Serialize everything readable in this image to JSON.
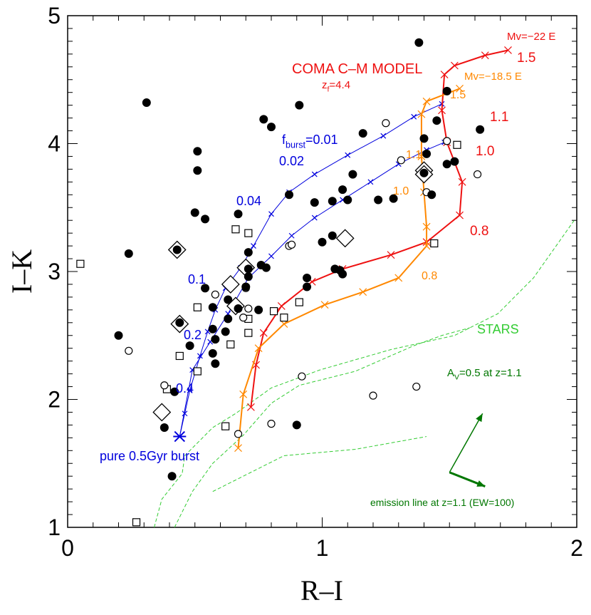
{
  "chart_data": {
    "type": "scatter",
    "xlabel": "R–I",
    "ylabel": "I–K",
    "xlim": [
      0,
      2
    ],
    "ylim": [
      1,
      5
    ],
    "xticks": [
      0,
      1,
      2
    ],
    "yticks": [
      1,
      2,
      3,
      4,
      5
    ],
    "xminorticks": [
      0.1,
      0.2,
      0.3,
      0.4,
      0.5,
      0.6,
      0.7,
      0.8,
      0.9,
      1.1,
      1.2,
      1.3,
      1.4,
      1.5,
      1.6,
      1.7,
      1.8,
      1.9
    ],
    "yminorticks": [
      1.1,
      1.2,
      1.3,
      1.4,
      1.5,
      1.6,
      1.7,
      1.8,
      1.9,
      2.1,
      2.2,
      2.3,
      2.4,
      2.5,
      2.6,
      2.7,
      2.8,
      2.9,
      3.1,
      3.2,
      3.3,
      3.4,
      3.5,
      3.6,
      3.7,
      3.8,
      3.9,
      4.1,
      4.2,
      4.3,
      4.4,
      4.5,
      4.6,
      4.7,
      4.8,
      4.9
    ],
    "series": [
      {
        "marker": "dashed",
        "color": "#33cc33",
        "x": [
          0.34,
          0.37,
          0.45,
          0.46,
          0.57,
          0.66,
          0.8,
          0.99,
          1.27,
          1.52,
          1.69,
          1.83,
          1.99
        ],
        "y": [
          1.0,
          1.22,
          1.42,
          1.56,
          1.78,
          1.89,
          2.09,
          2.23,
          2.39,
          2.5,
          2.67,
          2.95,
          3.4
        ]
      },
      {
        "marker": "dashed",
        "color": "#33cc33",
        "x": [
          0.42,
          0.49,
          0.57,
          0.69,
          0.8,
          0.91,
          1.13,
          1.36,
          1.47,
          1.58
        ],
        "y": [
          1.0,
          1.28,
          1.5,
          1.72,
          1.97,
          2.11,
          2.22,
          2.42,
          2.5,
          2.56
        ]
      },
      {
        "marker": "dashed",
        "color": "#33cc33",
        "x": [
          0.57,
          0.85,
          1.13,
          1.41
        ],
        "y": [
          1.28,
          1.56,
          1.61,
          1.71
        ]
      },
      {
        "marker": "x",
        "line": true,
        "width": 1,
        "color": "#0000dd",
        "x": [
          0.44,
          0.46,
          0.48,
          0.52,
          0.55,
          0.58,
          0.62,
          0.68,
          0.73,
          0.8,
          0.87,
          0.97,
          1.1,
          1.24,
          1.36,
          1.47
        ],
        "y": [
          1.71,
          1.89,
          2.07,
          2.34,
          2.53,
          2.7,
          2.87,
          3.03,
          3.2,
          3.45,
          3.62,
          3.76,
          3.91,
          4.06,
          4.21,
          4.31
        ]
      },
      {
        "marker": "x",
        "line": true,
        "width": 1,
        "color": "#0000dd",
        "x": [
          0.44,
          0.49,
          0.56,
          0.63,
          0.71,
          0.8,
          0.88,
          0.97,
          1.08,
          1.19,
          1.3,
          1.41,
          1.48
        ],
        "y": [
          1.71,
          2.23,
          2.45,
          2.67,
          2.95,
          3.12,
          3.28,
          3.42,
          3.56,
          3.7,
          3.84,
          3.95,
          4.01
        ]
      },
      {
        "marker": "x",
        "line": true,
        "width": 2,
        "color": "#ee1111",
        "x": [
          0.72,
          0.74,
          0.77,
          0.84,
          0.96,
          1.08,
          1.27,
          1.41,
          1.54,
          1.55,
          1.49,
          1.47,
          1.48,
          1.52,
          1.64,
          1.73
        ],
        "y": [
          1.94,
          2.27,
          2.52,
          2.73,
          2.92,
          3.02,
          3.13,
          3.23,
          3.44,
          3.7,
          4.01,
          4.26,
          4.54,
          4.61,
          4.69,
          4.73
        ]
      },
      {
        "marker": "x",
        "line": true,
        "width": 2,
        "color": "#ff8800",
        "x": [
          0.67,
          0.69,
          0.75,
          0.85,
          1.01,
          1.16,
          1.3,
          1.41,
          1.41,
          1.4,
          1.39,
          1.39,
          1.41,
          1.54
        ],
        "y": [
          1.62,
          2.04,
          2.4,
          2.59,
          2.74,
          2.84,
          2.95,
          3.2,
          3.35,
          3.62,
          3.9,
          4.23,
          4.33,
          4.43
        ]
      },
      {
        "marker": "star",
        "color": "#0000dd",
        "x": [
          0.44
        ],
        "y": [
          1.71
        ]
      },
      {
        "marker": "diamond",
        "color": "#000000",
        "x": [
          0.43,
          0.44,
          0.37,
          0.64,
          0.7,
          0.66,
          1.09,
          1.4,
          1.4
        ],
        "y": [
          3.17,
          2.59,
          1.9,
          2.9,
          3.03,
          2.73,
          3.26,
          3.79,
          3.76
        ]
      },
      {
        "marker": "square",
        "color": "#000000",
        "x": [
          0.05,
          0.27,
          0.39,
          0.44,
          0.51,
          0.51,
          0.64,
          0.66,
          0.71,
          0.71,
          0.81,
          0.91,
          0.85,
          0.62,
          1.53,
          1.44,
          0.71
        ],
        "y": [
          3.06,
          1.04,
          2.08,
          2.34,
          2.22,
          2.72,
          2.43,
          3.33,
          3.3,
          2.52,
          2.69,
          2.76,
          2.64,
          1.79,
          3.99,
          3.22,
          2.63
        ]
      },
      {
        "marker": "open-circle",
        "color": "#000000",
        "x": [
          0.24,
          0.38,
          0.58,
          0.7,
          0.69,
          0.71,
          0.87,
          0.88,
          1.25,
          1.31,
          1.41,
          1.49,
          1.61,
          0.92,
          1.2,
          1.37,
          0.8,
          0.67
        ],
        "y": [
          2.38,
          2.11,
          2.82,
          2.87,
          2.64,
          2.71,
          3.2,
          3.21,
          4.16,
          3.87,
          3.62,
          4.02,
          3.76,
          2.18,
          2.03,
          2.1,
          1.81,
          1.73
        ]
      },
      {
        "marker": "filled-circle",
        "color": "#000000",
        "x": [
          0.31,
          0.24,
          0.2,
          0.43,
          0.51,
          0.51,
          0.5,
          0.54,
          0.67,
          0.77,
          0.8,
          0.91,
          0.71,
          0.71,
          0.76,
          0.78,
          0.87,
          0.97,
          1.0,
          1.04,
          1.04,
          1.08,
          1.1,
          1.12,
          1.16,
          0.94,
          0.94,
          1.05,
          1.07,
          1.08,
          1.22,
          1.28,
          1.38,
          1.4,
          1.41,
          1.4,
          1.43,
          1.45,
          1.49,
          1.49,
          1.52,
          1.62,
          0.9,
          0.54,
          0.57,
          0.57,
          0.58,
          0.57,
          0.58,
          0.62,
          0.63,
          0.48,
          0.44,
          0.42,
          0.38,
          0.41,
          0.63,
          0.67,
          0.75,
          0.7,
          0.71
        ],
        "y": [
          4.32,
          3.14,
          2.5,
          3.17,
          3.94,
          3.79,
          3.46,
          3.41,
          3.45,
          4.19,
          4.13,
          4.3,
          3.15,
          3.02,
          3.05,
          3.03,
          3.6,
          3.54,
          3.23,
          3.55,
          3.28,
          3.64,
          3.56,
          3.76,
          4.08,
          2.95,
          2.88,
          3.02,
          3.01,
          2.98,
          3.56,
          3.57,
          4.79,
          4.04,
          3.92,
          3.77,
          3.6,
          4.18,
          4.41,
          3.84,
          3.86,
          4.11,
          1.8,
          2.87,
          2.72,
          2.55,
          2.47,
          2.36,
          2.28,
          2.53,
          2.63,
          2.42,
          2.6,
          2.06,
          1.78,
          1.4,
          2.78,
          2.71,
          2.7,
          2.88,
          2.96
        ]
      }
    ],
    "arrows": [
      {
        "color": "#007700",
        "x": [
          1.5,
          1.63
        ],
        "y": [
          1.43,
          1.89
        ]
      },
      {
        "color": "#007700",
        "x": [
          1.5,
          1.64
        ],
        "y": [
          1.43,
          1.32
        ]
      }
    ],
    "annotations": [
      {
        "color": "#ee1111",
        "parts": [
          "COMA C–M MODEL"
        ]
      },
      {
        "color": "#ee1111",
        "parts": [
          "z",
          "f",
          "=4.4"
        ]
      },
      {
        "color": "#ee1111",
        "parts": [
          "Mv=−22 E"
        ]
      },
      {
        "color": "#ee1111",
        "parts": [
          "1.5"
        ]
      },
      {
        "color": "#ee1111",
        "parts": [
          "1.1"
        ]
      },
      {
        "color": "#ee1111",
        "parts": [
          "1.0"
        ]
      },
      {
        "color": "#ee1111",
        "parts": [
          "0.8"
        ]
      },
      {
        "color": "#ff8800",
        "parts": [
          "Mv=−18.5 E"
        ]
      },
      {
        "color": "#ff8800",
        "parts": [
          "1.5"
        ]
      },
      {
        "color": "#ff8800",
        "parts": [
          "1.1"
        ]
      },
      {
        "color": "#ff8800",
        "parts": [
          "1.0"
        ]
      },
      {
        "color": "#ff8800",
        "parts": [
          "0.8"
        ]
      },
      {
        "color": "#0000dd",
        "parts": [
          "f",
          "burst",
          "=0.01"
        ]
      },
      {
        "color": "#0000dd",
        "parts": [
          "0.02"
        ]
      },
      {
        "color": "#0000dd",
        "parts": [
          "0.04"
        ]
      },
      {
        "color": "#0000dd",
        "parts": [
          "0.1"
        ]
      },
      {
        "color": "#0000dd",
        "parts": [
          "0.2"
        ]
      },
      {
        "color": "#0000dd",
        "parts": [
          "0.4"
        ]
      },
      {
        "color": "#0000dd",
        "parts": [
          "pure 0.5Gyr burst"
        ]
      },
      {
        "color": "#33cc33",
        "parts": [
          "STARS"
        ]
      },
      {
        "color": "#007700",
        "parts": [
          "A",
          "V",
          "=0.5 at z=1.1"
        ]
      },
      {
        "color": "#007700",
        "parts": [
          "emission line at z=1.1 (EW=100)"
        ]
      }
    ]
  }
}
